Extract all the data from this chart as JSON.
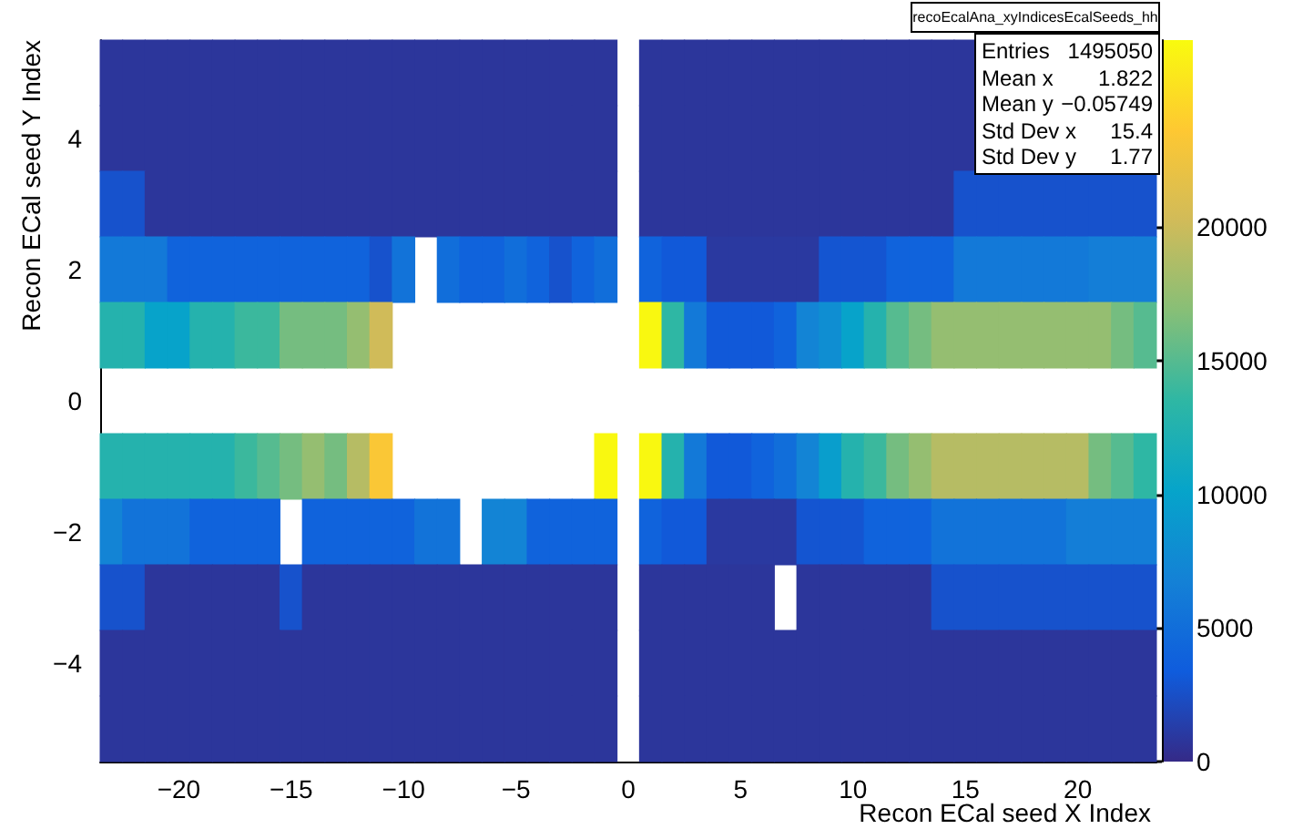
{
  "chart_data": {
    "type": "heatmap",
    "title": "recoEcalAna_xyIndicesEcalSeeds_hh",
    "xlabel": "Recon ECal seed X Index",
    "ylabel": "Recon ECal seed Y Index",
    "annotations": [
      "Entries 1495050",
      "Mean x 1.822",
      "Mean y −0.05749",
      "Std Dev x 15.4",
      "Std Dev y 1.77"
    ],
    "categories": [
      null,
      null,
      null,
      "−20",
      null,
      null,
      null,
      null,
      "−15",
      null,
      null,
      null,
      null,
      "−10",
      null,
      null,
      null,
      null,
      "−5",
      null,
      null,
      null,
      null,
      "0",
      null,
      null,
      null,
      null,
      "5",
      null,
      null,
      null,
      null,
      "10",
      null,
      null,
      null,
      null,
      "15",
      null,
      null,
      null,
      null,
      "20",
      null,
      null,
      null
    ],
    "y_categories": [
      null,
      "4",
      null,
      "2",
      null,
      "0",
      null,
      "−2",
      null,
      "−4",
      null
    ],
    "cells": [
      [
        800,
        800,
        800,
        800,
        800,
        800,
        800,
        800,
        800,
        800,
        800,
        800,
        800,
        800,
        800,
        800,
        800,
        800,
        800,
        800,
        800,
        800,
        800,
        null,
        800,
        800,
        800,
        800,
        800,
        800,
        800,
        800,
        800,
        800,
        800,
        800,
        800,
        800,
        800,
        null,
        null,
        null,
        null,
        null,
        null,
        null,
        null
      ],
      [
        800,
        800,
        800,
        800,
        800,
        800,
        800,
        800,
        800,
        800,
        800,
        800,
        800,
        800,
        800,
        800,
        800,
        800,
        800,
        800,
        800,
        800,
        800,
        null,
        800,
        800,
        800,
        800,
        800,
        800,
        800,
        800,
        800,
        800,
        800,
        800,
        800,
        800,
        800,
        null,
        null,
        null,
        null,
        null,
        null,
        null,
        null
      ],
      [
        2700,
        2700,
        800,
        800,
        800,
        800,
        800,
        800,
        800,
        800,
        800,
        800,
        800,
        800,
        800,
        800,
        800,
        800,
        800,
        800,
        800,
        800,
        800,
        null,
        800,
        800,
        800,
        800,
        800,
        800,
        800,
        800,
        800,
        800,
        800,
        800,
        800,
        800,
        2700,
        2700,
        2700,
        2700,
        2700,
        2700,
        2700,
        2700,
        2700
      ],
      [
        6000,
        6000,
        6000,
        4000,
        4000,
        4000,
        4000,
        4000,
        4000,
        4000,
        4000,
        4000,
        2700,
        5500,
        null,
        5000,
        4000,
        4000,
        5000,
        4000,
        2700,
        4000,
        5000,
        null,
        4000,
        3200,
        3200,
        1000,
        1000,
        1000,
        1000,
        1000,
        2900,
        2900,
        2900,
        4000,
        4000,
        4000,
        6000,
        6000,
        6000,
        6000,
        6000,
        6000,
        6500,
        6500,
        6500
      ],
      [
        12700,
        12700,
        10000,
        10000,
        12700,
        12700,
        14000,
        14000,
        16200,
        16200,
        16200,
        17500,
        20200,
        null,
        null,
        null,
        null,
        null,
        null,
        null,
        null,
        null,
        null,
        null,
        26800,
        13500,
        6000,
        3200,
        3200,
        3200,
        4000,
        7000,
        8000,
        10000,
        12700,
        15000,
        16200,
        17500,
        17500,
        17500,
        17500,
        17500,
        17500,
        17500,
        17500,
        16200,
        15000
      ],
      [
        null,
        null,
        null,
        null,
        null,
        null,
        null,
        null,
        null,
        null,
        null,
        null,
        null,
        null,
        null,
        null,
        null,
        null,
        null,
        null,
        null,
        null,
        null,
        null,
        null,
        null,
        null,
        null,
        null,
        null,
        null,
        null,
        null,
        null,
        null,
        null,
        null,
        null,
        null,
        null,
        null,
        null,
        null,
        null,
        null,
        null,
        null
      ],
      [
        12700,
        12700,
        12700,
        12700,
        12700,
        12700,
        14000,
        15000,
        16200,
        17500,
        16200,
        19000,
        23300,
        null,
        null,
        null,
        null,
        null,
        null,
        null,
        null,
        null,
        26800,
        null,
        26800,
        12700,
        6000,
        3200,
        3200,
        4000,
        5000,
        7000,
        9500,
        12700,
        14000,
        16200,
        17500,
        19000,
        19000,
        19000,
        19000,
        19000,
        19000,
        19000,
        16200,
        15000,
        13500
      ],
      [
        7000,
        5500,
        5500,
        5500,
        4000,
        4000,
        4000,
        4000,
        null,
        4000,
        4000,
        4000,
        4000,
        4000,
        5500,
        5500,
        null,
        7000,
        7000,
        4000,
        4000,
        4000,
        4000,
        null,
        4000,
        3200,
        3200,
        1000,
        1000,
        1000,
        1000,
        2900,
        2900,
        2900,
        4000,
        4000,
        4000,
        5500,
        5500,
        5500,
        5500,
        5500,
        5500,
        6500,
        6500,
        6500,
        6500
      ],
      [
        2700,
        2700,
        800,
        800,
        800,
        800,
        800,
        800,
        2700,
        800,
        800,
        800,
        800,
        800,
        800,
        800,
        800,
        800,
        800,
        800,
        800,
        800,
        800,
        null,
        800,
        800,
        800,
        800,
        800,
        800,
        null,
        800,
        800,
        800,
        800,
        800,
        800,
        2700,
        2700,
        2700,
        2700,
        2700,
        2700,
        2700,
        2700,
        2700,
        2700
      ],
      [
        800,
        800,
        800,
        800,
        800,
        800,
        800,
        800,
        800,
        800,
        800,
        800,
        800,
        800,
        800,
        800,
        800,
        800,
        800,
        800,
        800,
        800,
        800,
        null,
        800,
        800,
        800,
        800,
        800,
        800,
        800,
        800,
        800,
        800,
        800,
        800,
        800,
        800,
        800,
        800,
        800,
        800,
        800,
        800,
        800,
        800,
        800
      ],
      [
        800,
        800,
        800,
        800,
        800,
        800,
        800,
        800,
        800,
        800,
        800,
        800,
        800,
        800,
        800,
        800,
        800,
        800,
        800,
        800,
        800,
        800,
        800,
        null,
        800,
        800,
        800,
        800,
        800,
        800,
        800,
        800,
        800,
        800,
        800,
        800,
        800,
        800,
        800,
        800,
        800,
        800,
        800,
        800,
        800,
        800,
        800
      ]
    ],
    "colors": [
      "#352a87",
      "#0f5cdd",
      "#1481d6",
      "#06a4ca",
      "#2eb7a4",
      "#87bf77",
      "#d1bb59",
      "#fec832",
      "#f9fb0e"
    ],
    "clim": [
      0,
      27000
    ],
    "cticks": [
      0,
      5000,
      10000,
      15000,
      20000
    ]
  }
}
